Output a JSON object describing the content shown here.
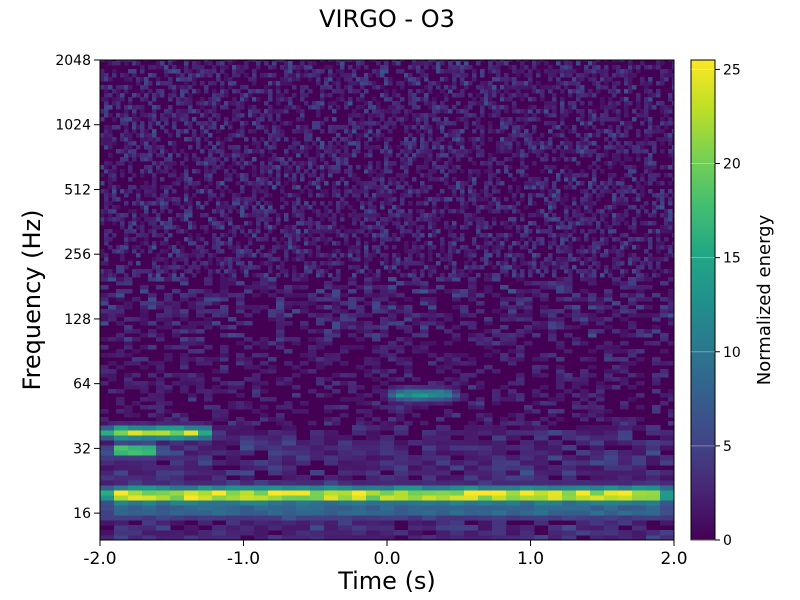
{
  "chart_data": {
    "type": "heatmap",
    "title": "VIRGO - O3",
    "xlabel": "Time (s)",
    "ylabel": "Frequency (Hz)",
    "colorbar_label": "Normalized energy",
    "xlim": [
      -2.0,
      2.0
    ],
    "ylim": [
      12,
      2048
    ],
    "y_scale": "log2",
    "x_ticks": [
      -2.0,
      -1.0,
      0.0,
      1.0,
      2.0
    ],
    "x_tick_labels": [
      "-2.0",
      "-1.0",
      "0.0",
      "1.0",
      "2.0"
    ],
    "y_ticks": [
      16,
      32,
      64,
      128,
      256,
      512,
      1024,
      2048
    ],
    "y_tick_labels": [
      "16",
      "32",
      "64",
      "128",
      "256",
      "512",
      "1024",
      "2048"
    ],
    "colorbar_range": [
      0,
      25.5
    ],
    "colorbar_ticks": [
      0,
      5,
      10,
      15,
      20,
      25
    ],
    "colorbar_tick_labels": [
      "0",
      "5",
      "10",
      "15",
      "20",
      "25"
    ],
    "colormap": "viridis",
    "features": [
      {
        "t_start": -2.0,
        "t_end": 2.0,
        "freq_hz": 19.5,
        "energy": 25
      },
      {
        "t_start": -2.0,
        "t_end": -1.2,
        "freq_hz": 38.0,
        "energy": 22
      },
      {
        "t_start": -1.95,
        "t_end": -1.55,
        "freq_hz": 31.5,
        "energy": 20
      },
      {
        "t_start": 0.0,
        "t_end": 0.5,
        "freq_hz": 57.0,
        "energy": 13
      },
      {
        "t_start": -2.0,
        "t_end": 2.0,
        "freq_hz": 16.5,
        "energy": 9
      }
    ]
  }
}
